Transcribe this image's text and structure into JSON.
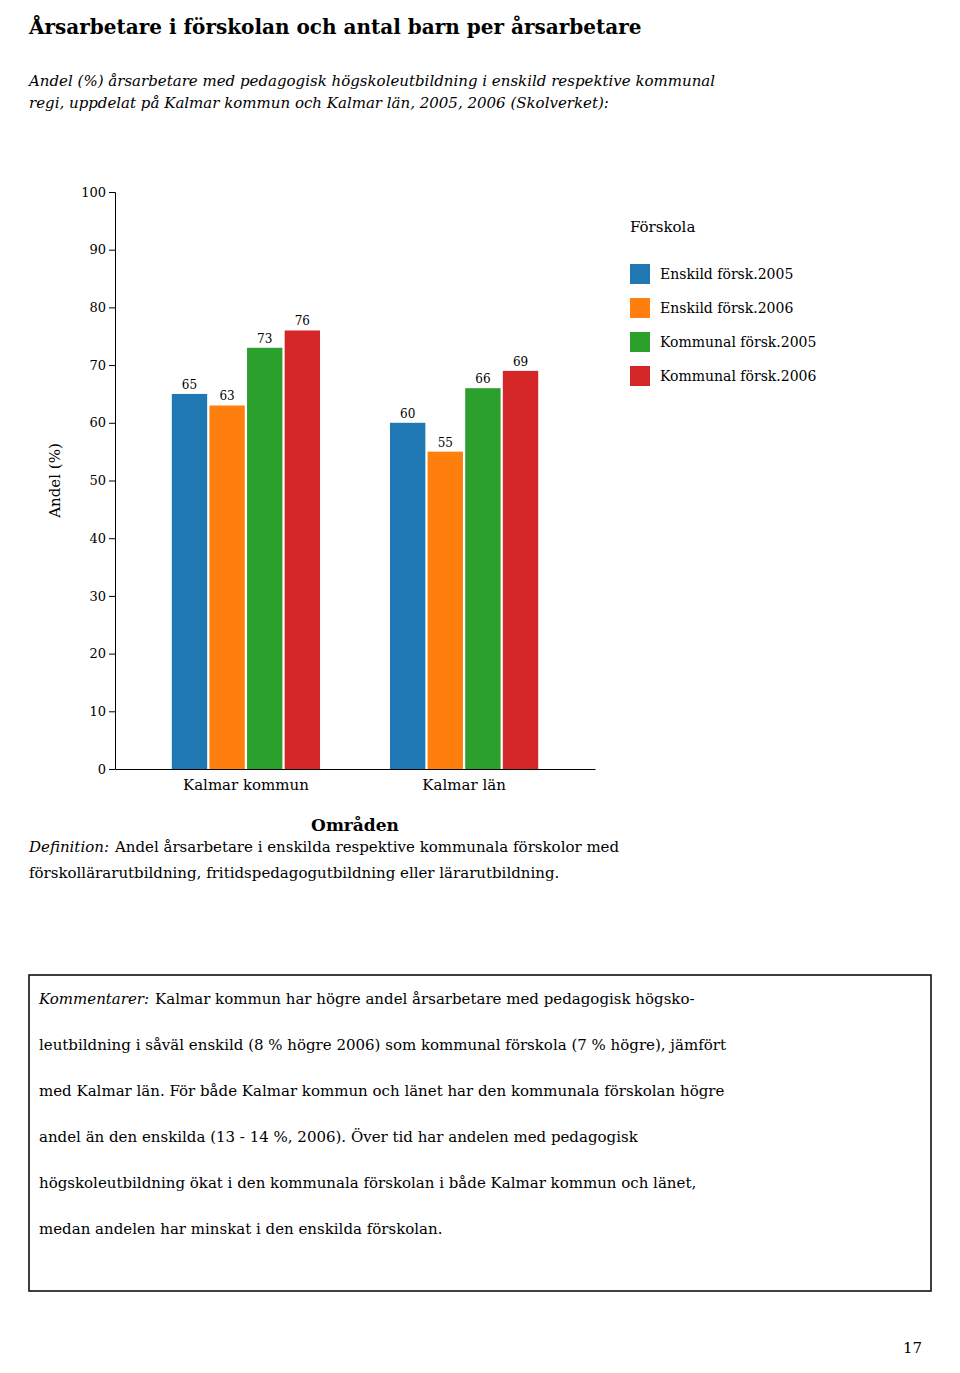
{
  "chart_data": {
    "type": "bar",
    "title": "Årsarbetare i förskolan och antal barn per årsarbetare",
    "subtitle": "Andel (%) årsarbetare med pedagogisk högskoleutbildning i enskild respektive kommunal\nregi, uppdelat på Kalmar kommun och Kalmar län, 2005, 2006 (Skolverket):",
    "categories": [
      "Kalmar kommun",
      "Kalmar län"
    ],
    "series": [
      {
        "name": "Enskild försk.2005",
        "values": [
          65,
          60
        ]
      },
      {
        "name": "Enskild försk.2006",
        "values": [
          63,
          55
        ]
      },
      {
        "name": "Kommunal försk.2005",
        "values": [
          73,
          66
        ]
      },
      {
        "name": "Kommunal försk.2006",
        "values": [
          76,
          69
        ]
      }
    ],
    "ylabel": "Andel (%)",
    "xlabel": "Områden",
    "ylim": [
      0,
      100
    ],
    "yticks": [
      0,
      10,
      20,
      30,
      40,
      50,
      60,
      70,
      80,
      90,
      100
    ],
    "grid": false,
    "data_labels": true,
    "legend": "right",
    "legend_title": "Förskola",
    "annotations": [
      {
        "label": "Definition:",
        "lines": [
          "Andel årsarbetare i enskilda respektive kommunala förskolor med",
          "förskollärarutbildning, fritidspedagogutbildning eller lärarutbildning."
        ]
      },
      {
        "label": "Kommentarer:",
        "lines": [
          "Kalmar kommun har högre andel årsarbetare med pedagogisk högsko-",
          "leutbildning i såväl enskild (8 % högre 2006) som kommunal förskola (7 % högre), jämfört",
          "med Kalmar län. För både Kalmar kommun och länet har den kommunala förskolan högre",
          "andel än den enskilda (13 - 14 %, 2006). Över tid har andelen med pedagogisk",
          "högskoleutbildning ökat i den kommunala förskolan i både Kalmar kommun och länet,",
          "medan andelen har minskat i den enskilda förskolan."
        ]
      }
    ],
    "page_number": "17"
  }
}
